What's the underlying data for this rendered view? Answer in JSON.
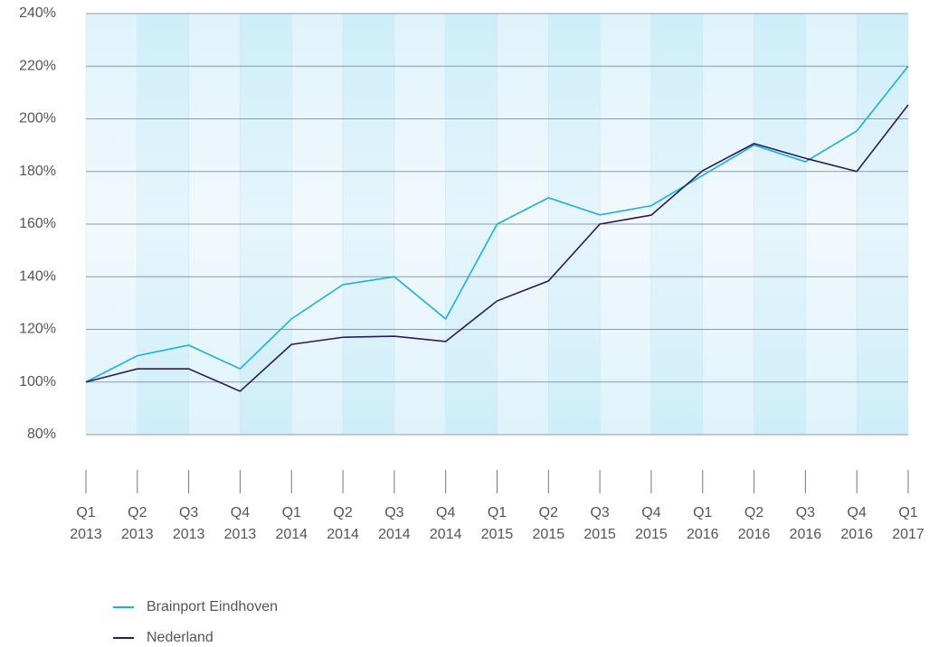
{
  "chart_data": {
    "type": "line",
    "categories": [
      "Q1 2013",
      "Q2 2013",
      "Q3 2013",
      "Q4 2013",
      "Q1 2014",
      "Q2 2014",
      "Q3 2014",
      "Q4 2014",
      "Q1 2015",
      "Q2 2015",
      "Q3 2015",
      "Q4 2015",
      "Q1 2016",
      "Q2 2016",
      "Q3 2016",
      "Q4 2016",
      "Q1 2017"
    ],
    "series": [
      {
        "name": "Brainport Eindhoven",
        "color": "#1ab0d8",
        "values": [
          100,
          110,
          114,
          105,
          124,
          137,
          140,
          124,
          160,
          170,
          163.5,
          167,
          178.5,
          190,
          183.7,
          195.4,
          220
        ]
      },
      {
        "name": "Nederland",
        "color": "#2d1a5c",
        "values": [
          100,
          105,
          105,
          96.5,
          114.3,
          117,
          117.4,
          115.4,
          130.8,
          138.4,
          160,
          163.4,
          180.3,
          190.6,
          185,
          180,
          205.3
        ]
      }
    ],
    "ylim": [
      80,
      240
    ],
    "yticks": [
      {
        "value": 80,
        "label": "80%"
      },
      {
        "value": 100,
        "label": "100%"
      },
      {
        "value": 120,
        "label": "120%"
      },
      {
        "value": 140,
        "label": "140%"
      },
      {
        "value": 160,
        "label": "160%"
      },
      {
        "value": 180,
        "label": "180%"
      },
      {
        "value": 200,
        "label": "200%"
      },
      {
        "value": 220,
        "label": "220%"
      },
      {
        "value": 240,
        "label": "240%"
      }
    ],
    "grid": true,
    "legend": "bottom-left"
  }
}
